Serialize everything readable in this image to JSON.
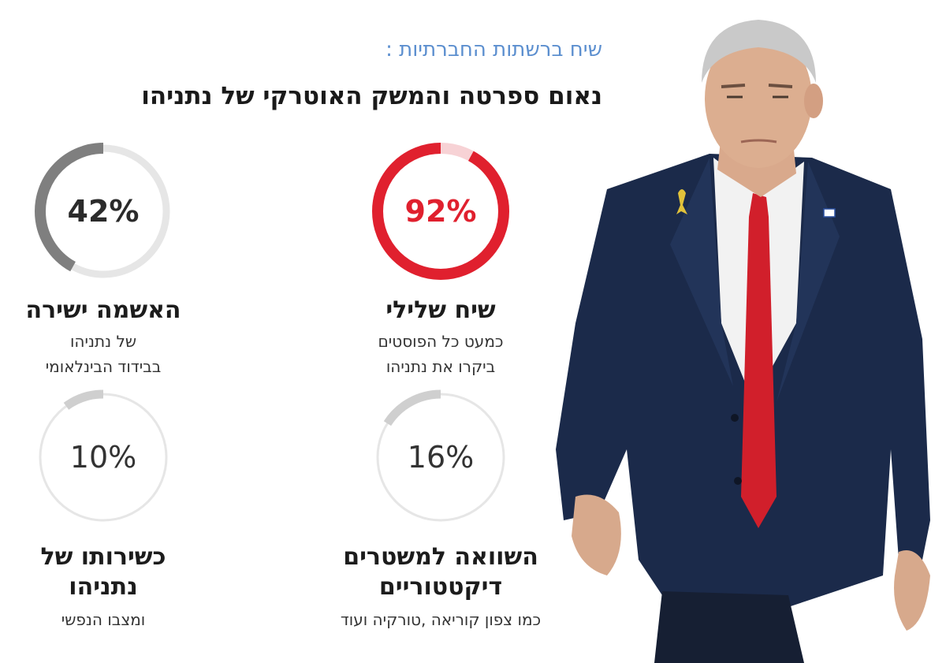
{
  "header": {
    "subtitle": "שיח ברשתות החברתיות :",
    "title": "נאום ספרטה והמשק האוטרקי של נתניהו"
  },
  "stats": {
    "negative": {
      "value_text": "92%",
      "value": 92,
      "color": "#e0202e",
      "label": "שיח שלילי",
      "desc_line1": "כמעט כל הפוסטים",
      "desc_line2": "ביקרו את נתניהו"
    },
    "blame": {
      "value_text": "42%",
      "value": 42,
      "color": "#7f7f7f",
      "label": "האשמה ישירה",
      "desc_line1": "של נתניהו",
      "desc_line2": "בבידוד הבינלאומי"
    },
    "dictatorship": {
      "value_text": "16%",
      "value": 16,
      "color": "#cfcfcf",
      "label_line1": "השוואה למשטרים",
      "label_line2": "דיקטטוריים",
      "desc_line1": "כמו צפון קוריאה ,טורקיה ועוד"
    },
    "fitness": {
      "value_text": "10%",
      "value": 10,
      "color": "#cfcfcf",
      "label_line1": "כשירותו של",
      "label_line2": "נתניהו",
      "desc_line1": "ומצבו הנפשי"
    }
  },
  "colors": {
    "subtitle": "#5c8fcf",
    "track_red": "#f7d2d5",
    "track_gray": "#e6e6e6",
    "suit": "#1b2a4a",
    "tie": "#d11f2b"
  }
}
